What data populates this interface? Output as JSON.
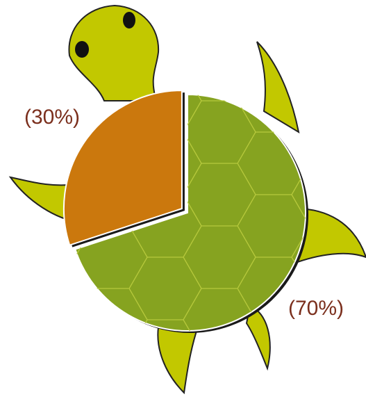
{
  "chart_data": {
    "type": "pie",
    "values": [
      70,
      30
    ],
    "value_labels": [
      "(70%)",
      "(30%)"
    ],
    "colors": [
      "#86a320",
      "#cb780d"
    ]
  }
}
